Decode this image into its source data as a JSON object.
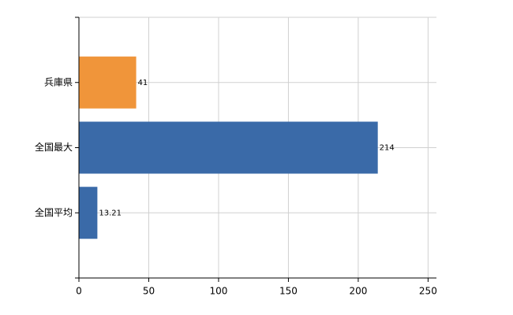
{
  "chart_data": {
    "type": "barh",
    "categories": [
      "兵庫県",
      "全国最大",
      "全国平均"
    ],
    "values": [
      41,
      214,
      13.21
    ],
    "colors": [
      "#f0953a",
      "#3a6aa8",
      "#3a6aa8"
    ],
    "xlim": [
      0,
      256
    ],
    "xticks": [
      0,
      50,
      100,
      150,
      200,
      250
    ],
    "grid": true
  }
}
